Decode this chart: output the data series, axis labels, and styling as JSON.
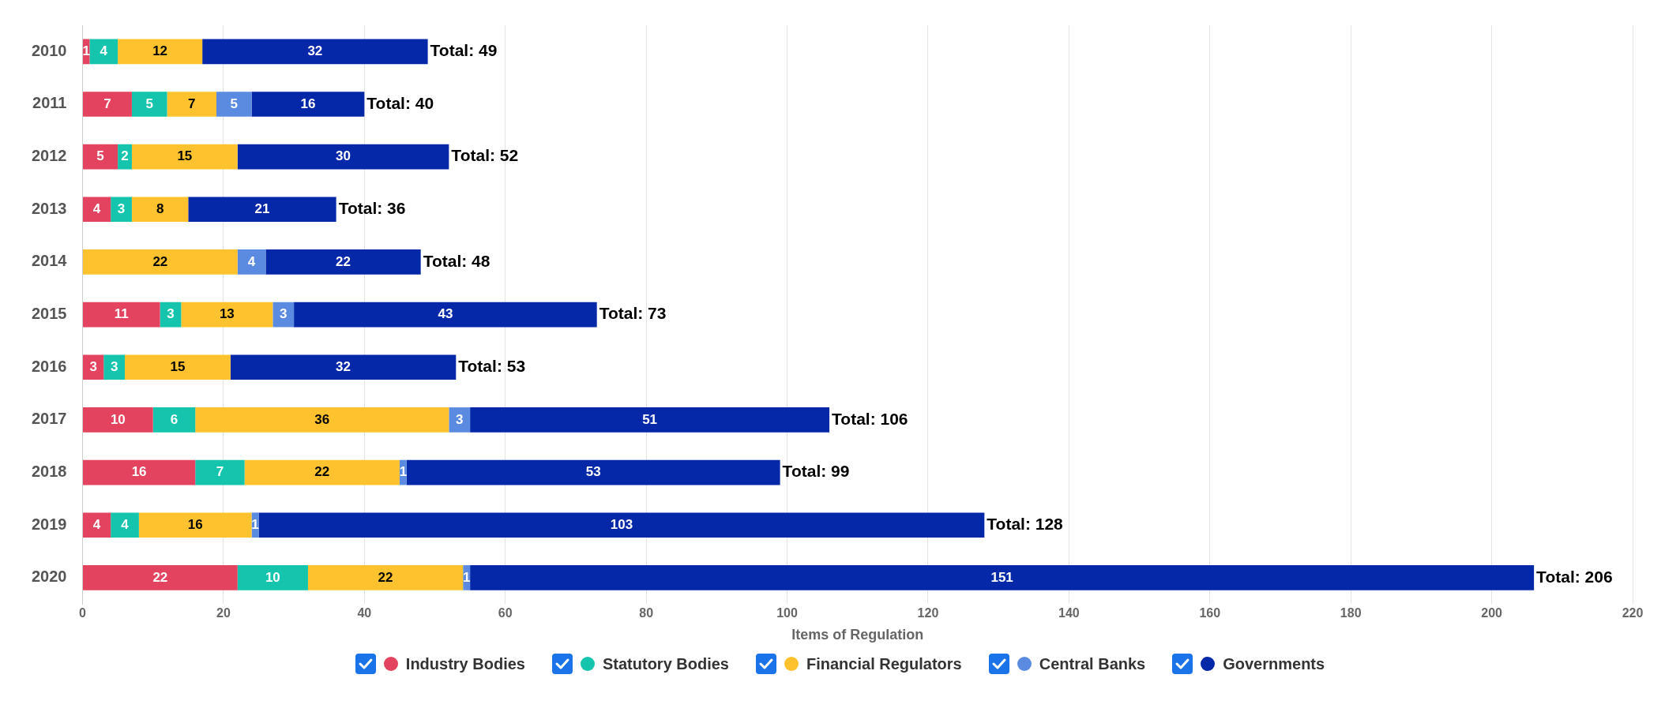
{
  "chart_data": {
    "type": "bar",
    "orientation": "horizontal",
    "stacked": true,
    "xlabel": "Items of Regulation",
    "categories": [
      "2010",
      "2011",
      "2012",
      "2013",
      "2014",
      "2015",
      "2016",
      "2017",
      "2018",
      "2019",
      "2020"
    ],
    "series": [
      {
        "name": "Industry Bodies",
        "color": "#e3435f",
        "values": [
          1,
          7,
          5,
          4,
          null,
          11,
          3,
          10,
          16,
          4,
          22
        ]
      },
      {
        "name": "Statutory Bodies",
        "color": "#14c4ad",
        "values": [
          4,
          5,
          2,
          3,
          null,
          3,
          3,
          6,
          7,
          4,
          10
        ]
      },
      {
        "name": "Financial Regulators",
        "color": "#fdc22e",
        "values": [
          12,
          7,
          15,
          8,
          22,
          13,
          15,
          36,
          22,
          16,
          22
        ]
      },
      {
        "name": "Central Banks",
        "color": "#5b8be0",
        "values": [
          null,
          5,
          null,
          null,
          4,
          3,
          null,
          3,
          1,
          1,
          1
        ]
      },
      {
        "name": "Governments",
        "color": "#0528a8",
        "values": [
          32,
          16,
          30,
          21,
          22,
          43,
          32,
          51,
          53,
          103,
          151
        ]
      }
    ],
    "totals": [
      "Total: 49",
      "Total: 40",
      "Total: 52",
      "Total: 36",
      "Total: 48",
      "Total: 73",
      "Total: 53",
      "Total: 106",
      "Total: 99",
      "Total: 128",
      "Total: 206"
    ],
    "data_labels": true,
    "xlim": [
      0,
      220
    ],
    "xticks": [
      0,
      20,
      40,
      60,
      80,
      100,
      120,
      140,
      160,
      180,
      200,
      220
    ],
    "grid": "x",
    "legend": "bottom"
  }
}
